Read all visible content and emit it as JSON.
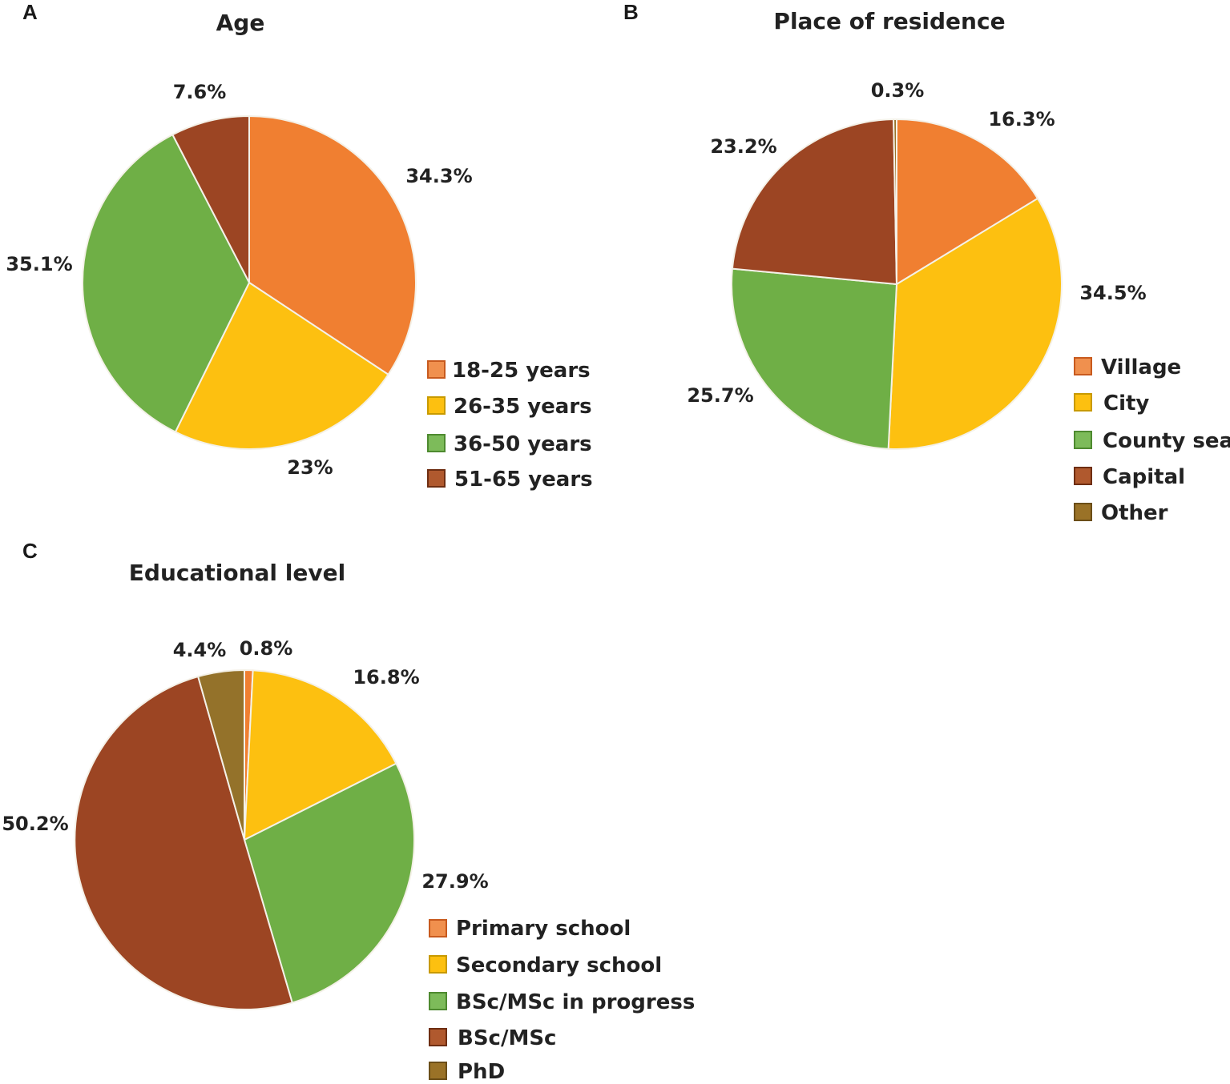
{
  "chart_data": [
    {
      "type": "pie",
      "panel": "A",
      "title": "Age",
      "categories": [
        "18-25 years",
        "26-35 years",
        "36-50 years",
        "51-65 years"
      ],
      "values": [
        34.3,
        23,
        35.1,
        7.6
      ],
      "value_labels": [
        "34.3%",
        "23%",
        "35.1%",
        "7.6%"
      ],
      "colors": [
        "#F07F31",
        "#FDC010",
        "#6FAF46",
        "#9C4523"
      ],
      "legend_colors": [
        "#F0904E",
        "#FDC010",
        "#7DBB5A",
        "#B0592E"
      ],
      "legend_borders": [
        "#C85A1E",
        "#C89A00",
        "#4E8A30",
        "#6E2E12"
      ],
      "legend_position": "bottom-right"
    },
    {
      "type": "pie",
      "panel": "B",
      "title": "Place of residence",
      "categories": [
        "Village",
        "City",
        "County seat",
        "Capital",
        "Other"
      ],
      "values": [
        16.3,
        34.5,
        25.7,
        23.2,
        0.3
      ],
      "value_labels": [
        "16.3%",
        "34.5%",
        "25.7%",
        "23.2%",
        "0.3%"
      ],
      "colors": [
        "#F07F31",
        "#FDC010",
        "#6FAF46",
        "#9C4523",
        "#9A7227"
      ],
      "legend_colors": [
        "#F0904E",
        "#FDC010",
        "#7DBB5A",
        "#B0592E",
        "#9A7227"
      ],
      "legend_borders": [
        "#C85A1E",
        "#C89A00",
        "#4E8A30",
        "#6E2E12",
        "#6B4E18"
      ],
      "legend_position": "bottom-right"
    },
    {
      "type": "pie",
      "panel": "C",
      "title": "Educational level",
      "categories": [
        "Primary school",
        "Secondary school",
        "BSc/MSc in progress",
        "BSc/MSc",
        "PhD"
      ],
      "values": [
        0.8,
        16.8,
        27.9,
        50.2,
        4.4
      ],
      "value_labels": [
        "0.8%",
        "16.8%",
        "27.9%",
        "50.2%",
        "4.4%"
      ],
      "colors": [
        "#F07F31",
        "#FDC010",
        "#6FAF46",
        "#9C4523",
        "#94722A"
      ],
      "legend_colors": [
        "#F0904E",
        "#FDC010",
        "#7DBB5A",
        "#B0592E",
        "#9A7227"
      ],
      "legend_borders": [
        "#C85A1E",
        "#C89A00",
        "#4E8A30",
        "#6E2E12",
        "#6B4E18"
      ],
      "legend_position": "bottom-right"
    }
  ]
}
